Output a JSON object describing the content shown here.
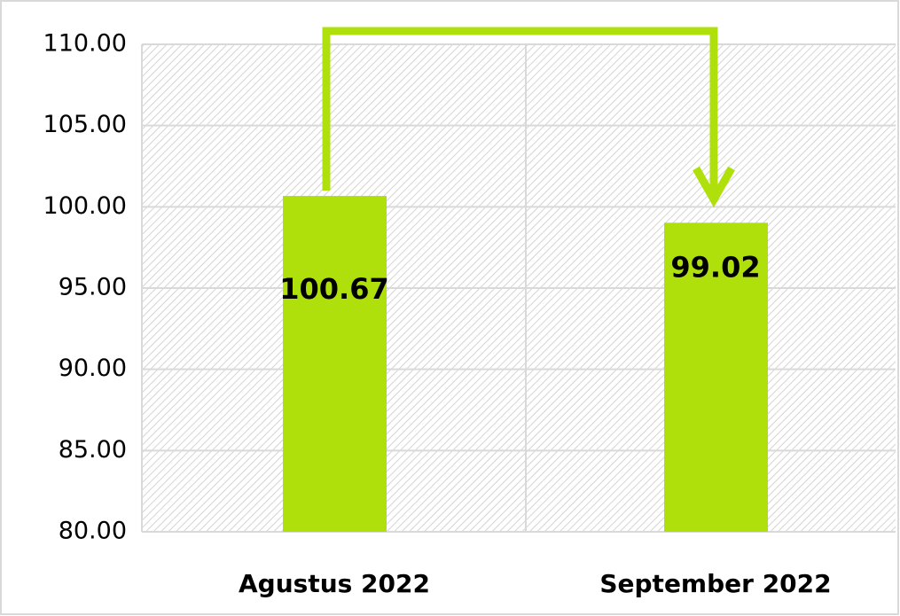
{
  "chart_data": {
    "type": "bar",
    "categories": [
      "Agustus 2022",
      "September 2022"
    ],
    "values": [
      100.67,
      99.02
    ],
    "color": "#b0e00b",
    "ylim": [
      80,
      110
    ],
    "yticks": [
      {
        "value": 80,
        "label": "80.00"
      },
      {
        "value": 85,
        "label": "85.00"
      },
      {
        "value": 90,
        "label": "90.00"
      },
      {
        "value": 95,
        "label": "95.00"
      },
      {
        "value": 100,
        "label": "100.00"
      },
      {
        "value": 105,
        "label": "105.00"
      },
      {
        "value": 110,
        "label": "110.00"
      }
    ],
    "grid": true
  }
}
